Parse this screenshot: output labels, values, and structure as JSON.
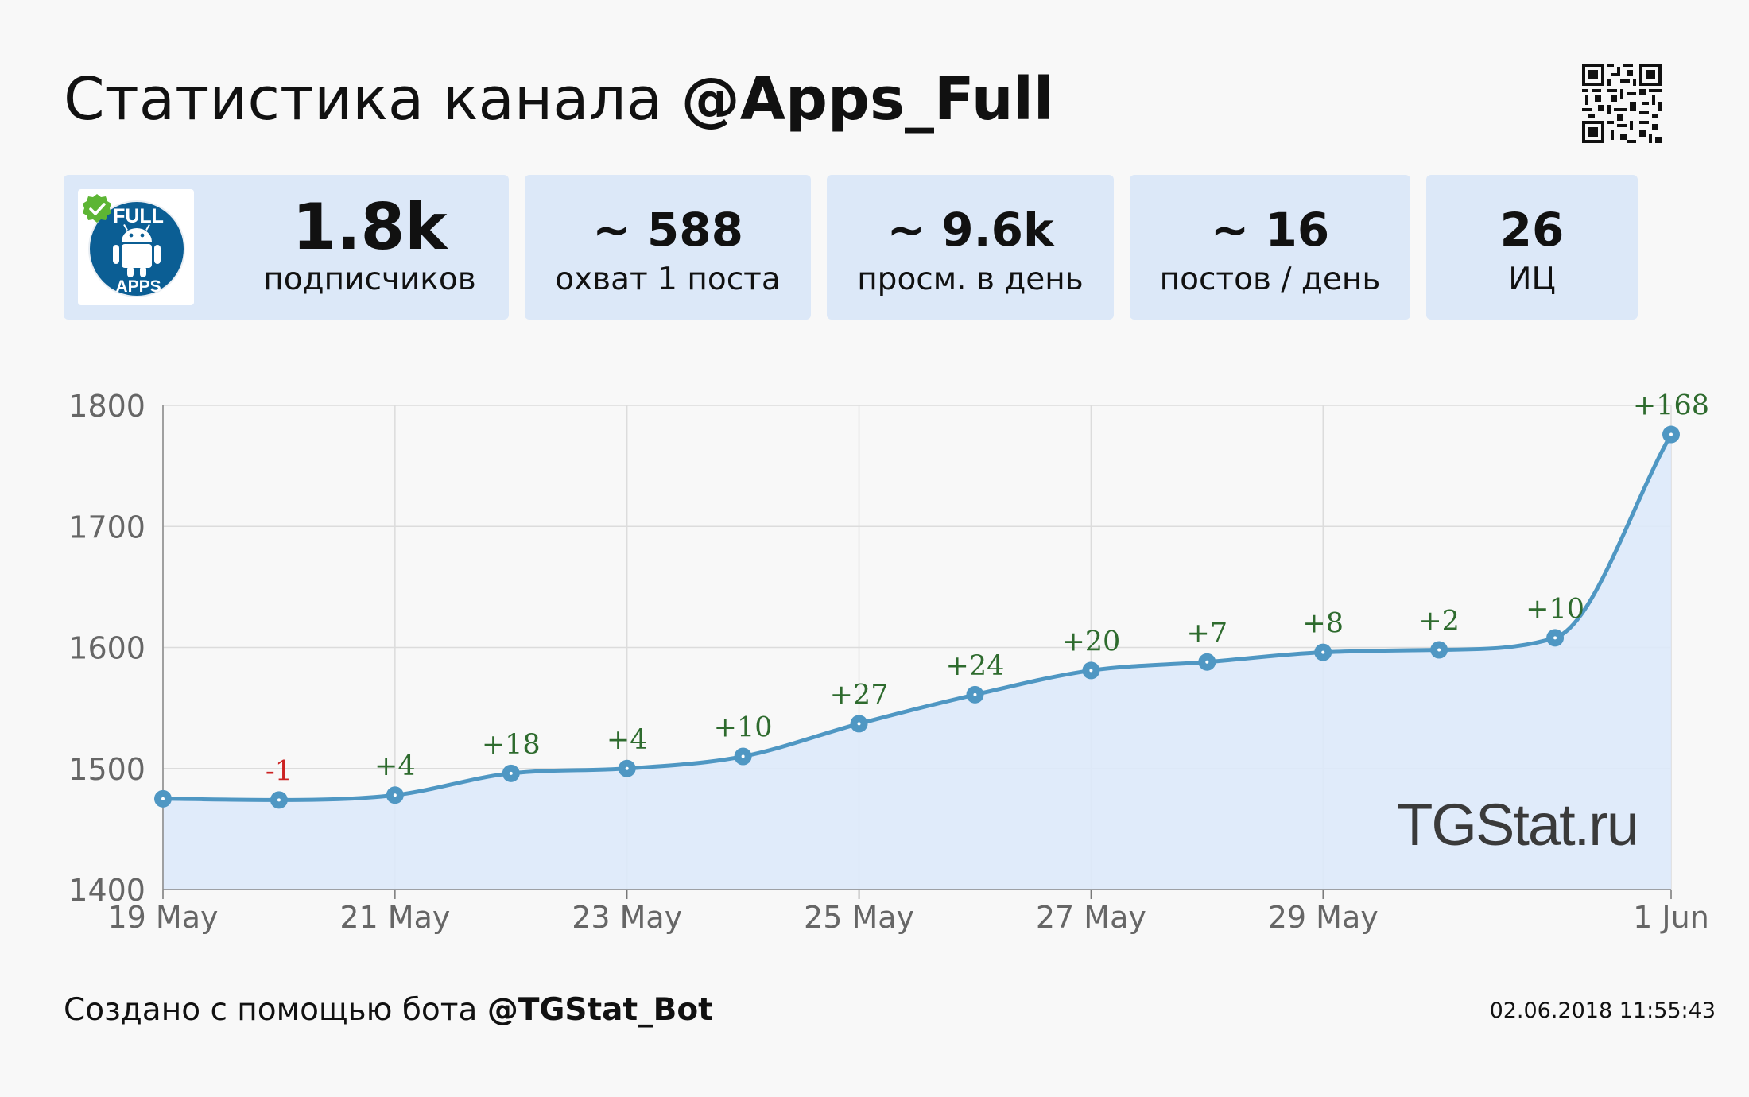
{
  "header": {
    "title_prefix": "Статистика канала",
    "channel": "@Apps_Full"
  },
  "avatar": {
    "top_text": "FULL",
    "bottom_text": "APPS"
  },
  "stats": [
    {
      "value": "1.8k",
      "label": "подписчиков"
    },
    {
      "value": "~ 588",
      "label": "охват 1 поста"
    },
    {
      "value": "~ 9.6k",
      "label": "просм. в день"
    },
    {
      "value": "~ 16",
      "label": "постов / день"
    },
    {
      "value": "26",
      "label": "ИЦ"
    }
  ],
  "chart_data": {
    "type": "area",
    "title": "",
    "xlabel": "",
    "ylabel": "",
    "x": [
      "19 May",
      "20 May",
      "21 May",
      "22 May",
      "23 May",
      "24 May",
      "25 May",
      "26 May",
      "27 May",
      "28 May",
      "29 May",
      "30 May",
      "31 May",
      "1 Jun"
    ],
    "series": [
      {
        "values": [
          1475,
          1474,
          1478,
          1496,
          1500,
          1510,
          1537,
          1561,
          1581,
          1588,
          1596,
          1598,
          1608,
          1776
        ],
        "changes": [
          "",
          "-1",
          "+4",
          "+18",
          "+4",
          "+10",
          "+27",
          "+24",
          "+20",
          "+7",
          "+8",
          "+2",
          "+10",
          "+168"
        ]
      }
    ],
    "ylim": [
      1400,
      1800
    ],
    "yticks": [
      1400,
      1500,
      1600,
      1700,
      1800
    ],
    "xtick_labels": [
      "19 May",
      "21 May",
      "23 May",
      "25 May",
      "27 May",
      "29 May",
      "1 Jun"
    ],
    "grid": true,
    "line_color": "#4f97c3",
    "fill_color": "#dde9fa",
    "positive_color": "#2e6b2e",
    "negative_color": "#cc2222"
  },
  "watermark": "TGStat.ru",
  "footer": {
    "text": "Создано с помощью бота",
    "bot": "@TGStat_Bot",
    "timestamp": "02.06.2018 11:55:43"
  }
}
